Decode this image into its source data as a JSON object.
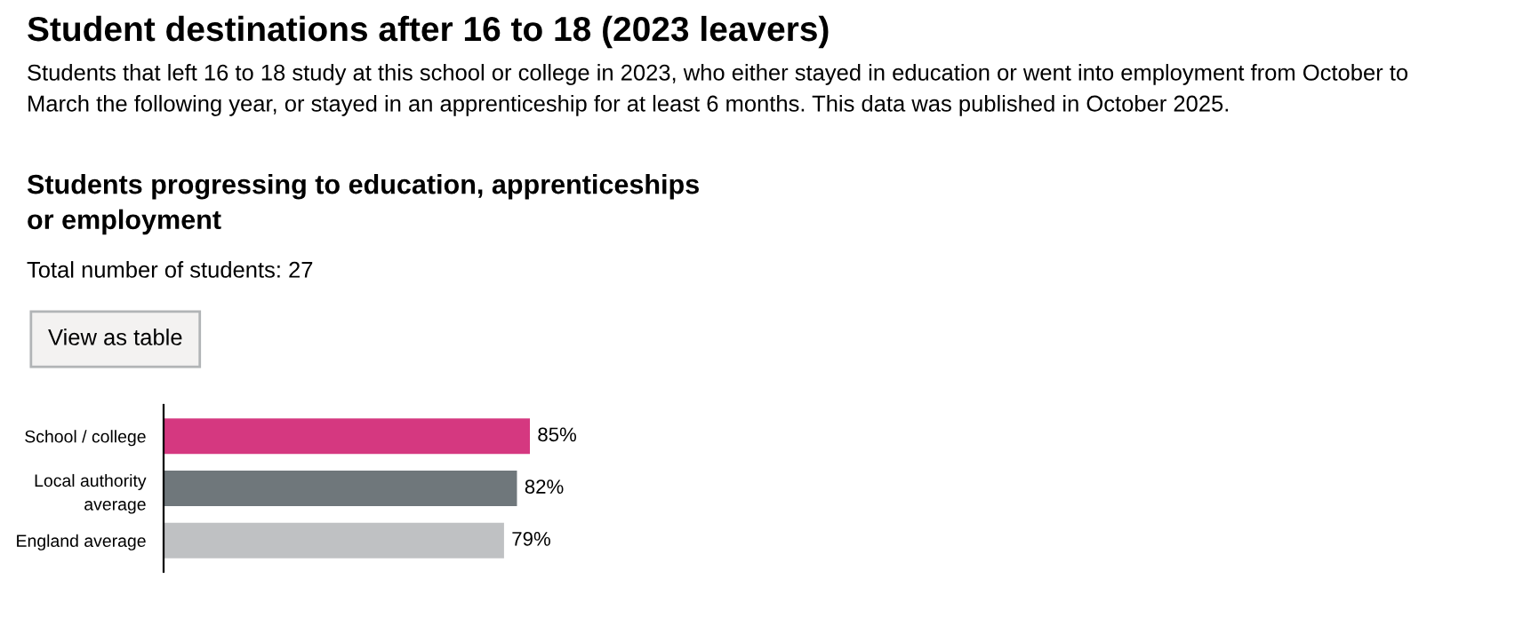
{
  "chart_data": {
    "type": "bar",
    "orientation": "horizontal",
    "title": "Student destinations after 16 to 18 (2023 leavers)",
    "subtitle": "Students that left 16 to 18 study at this school or college in 2023, who either stayed in education or went into employment from October to\nMarch the following year, or stayed in an apprenticeship for at least 6 months. This data was published in October 2025.",
    "annotations": [
      "Students progressing to education, apprenticeships\nor employment",
      "Total number of students: 27",
      "View as table"
    ],
    "categories": [
      "School / college",
      "Local authority\naverage",
      "England average"
    ],
    "values": [
      85,
      82,
      79
    ],
    "colors": [
      "#d53880",
      "#6f777b",
      "#bfc1c3"
    ],
    "value_labels": [
      "85%",
      "82%",
      "79%"
    ],
    "tick_labels": "y",
    "grid": false,
    "legend": false
  }
}
